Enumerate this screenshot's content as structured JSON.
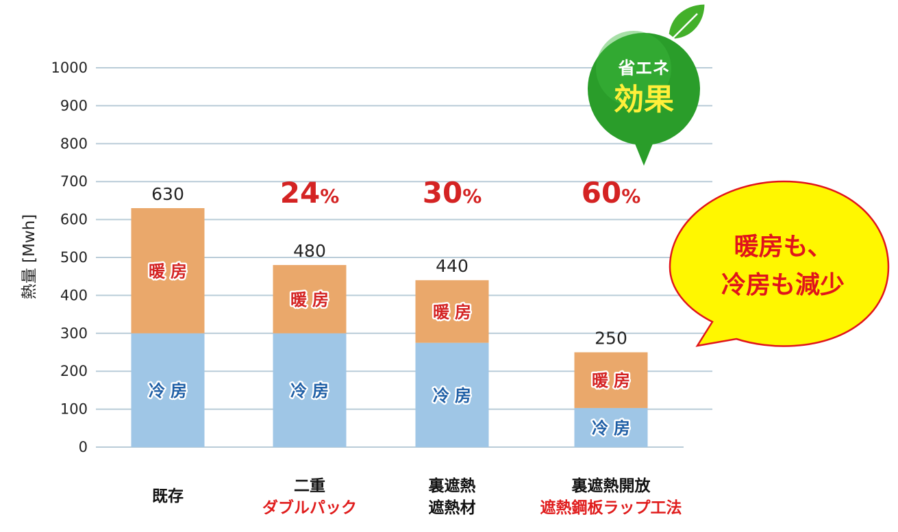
{
  "chart_data": {
    "type": "bar",
    "stacked": true,
    "ylabel": "熱量 [Mwh]",
    "ylim": [
      0,
      1000
    ],
    "yticks": [
      0,
      100,
      200,
      300,
      400,
      500,
      600,
      700,
      800,
      900,
      1000
    ],
    "grid": true,
    "categories": [
      {
        "lines": [
          "既存"
        ],
        "red": [
          false
        ]
      },
      {
        "lines": [
          "二重",
          "ダブルパック"
        ],
        "red": [
          false,
          true
        ]
      },
      {
        "lines": [
          "裏遮熱",
          "遮熱材"
        ],
        "red": [
          false,
          false
        ]
      },
      {
        "lines": [
          "裏遮熱開放",
          "遮熱鋼板ラップ工法"
        ],
        "red": [
          false,
          true
        ]
      }
    ],
    "series": [
      {
        "name": "冷房",
        "color": "#9fc6e6",
        "label_color": "#1f5fa6",
        "values": [
          300,
          300,
          275,
          103
        ]
      },
      {
        "name": "暖房",
        "color": "#eaa86b",
        "label_color": "#d42323",
        "values": [
          330,
          180,
          165,
          147
        ]
      }
    ],
    "totals": [
      630,
      480,
      440,
      250
    ],
    "reductions": [
      {
        "value": "",
        "unit": ""
      },
      {
        "value": "24",
        "unit": "%"
      },
      {
        "value": "30",
        "unit": "%"
      },
      {
        "value": "60",
        "unit": "%"
      }
    ]
  },
  "badge": {
    "line1": "省エネ",
    "line2": "効果",
    "color": "#2a9d2a"
  },
  "bubble": {
    "line1": "暖房も、",
    "line2": "冷房も減少",
    "fill": "#fff700",
    "stroke": "#e0141b"
  }
}
